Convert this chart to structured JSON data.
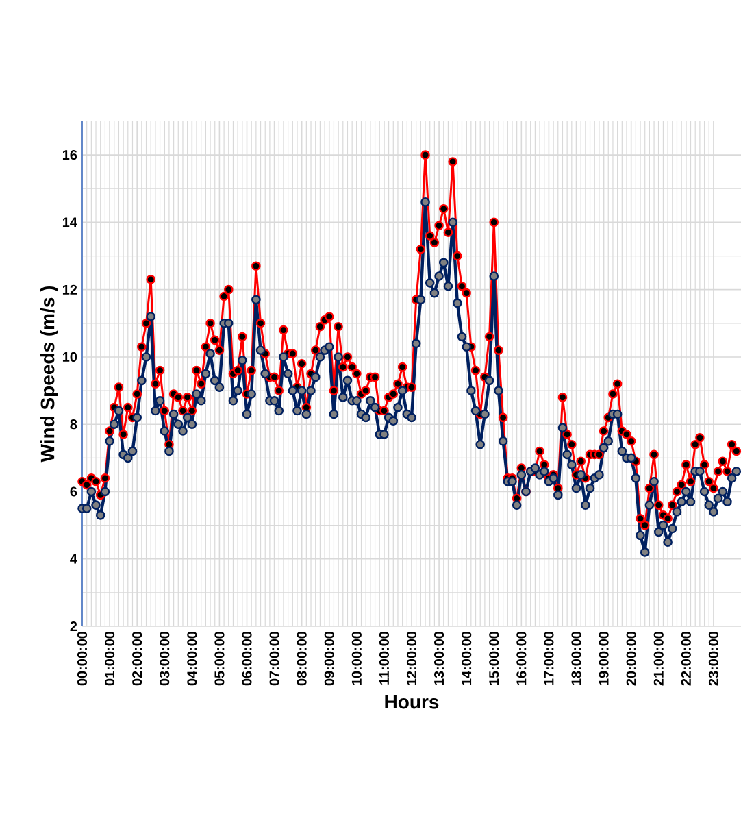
{
  "chart_data": {
    "type": "line",
    "xlabel": "Hours",
    "ylabel": "Wind Speeds (m/s )",
    "x": [
      0,
      0.1667,
      0.3333,
      0.5,
      0.6667,
      0.8333,
      1,
      1.1667,
      1.3333,
      1.5,
      1.6667,
      1.8333,
      2,
      2.1667,
      2.3333,
      2.5,
      2.6667,
      2.8333,
      3,
      3.1667,
      3.3333,
      3.5,
      3.6667,
      3.8333,
      4,
      4.1667,
      4.3333,
      4.5,
      4.6667,
      4.8333,
      5,
      5.1667,
      5.3333,
      5.5,
      5.6667,
      5.8333,
      6,
      6.1667,
      6.3333,
      6.5,
      6.6667,
      6.8333,
      7,
      7.1667,
      7.3333,
      7.5,
      7.6667,
      7.8333,
      8,
      8.1667,
      8.3333,
      8.5,
      8.6667,
      8.8333,
      9,
      9.1667,
      9.3333,
      9.5,
      9.6667,
      9.8333,
      10,
      10.1667,
      10.3333,
      10.5,
      10.6667,
      10.8333,
      11,
      11.1667,
      11.3333,
      11.5,
      11.6667,
      11.8333,
      12,
      12.1667,
      12.3333,
      12.5,
      12.6667,
      12.8333,
      13,
      13.1667,
      13.3333,
      13.5,
      13.6667,
      13.8333,
      14,
      14.1667,
      14.3333,
      14.5,
      14.6667,
      14.8333,
      15,
      15.1667,
      15.3333,
      15.5,
      15.6667,
      15.8333,
      16,
      16.1667,
      16.3333,
      16.5,
      16.6667,
      16.8333,
      17,
      17.1667,
      17.3333,
      17.5,
      17.6667,
      17.8333,
      18,
      18.1667,
      18.3333,
      18.5,
      18.6667,
      18.8333,
      19,
      19.1667,
      19.3333,
      19.5,
      19.6667,
      19.8333,
      20,
      20.1667,
      20.3333,
      20.5,
      20.6667,
      20.8333,
      21,
      21.1667,
      21.3333,
      21.5,
      21.6667,
      21.8333,
      22,
      22.1667,
      22.3333,
      22.5,
      22.6667,
      22.8333,
      23,
      23.1667,
      23.3333,
      23.5,
      23.6667,
      23.8333
    ],
    "series": [
      {
        "color": "#ff0000",
        "values": [
          6.3,
          6.2,
          6.4,
          6.3,
          5.9,
          6.4,
          7.8,
          8.5,
          9.1,
          7.7,
          8.5,
          8.2,
          8.9,
          10.3,
          11.0,
          12.3,
          9.2,
          9.6,
          8.4,
          7.4,
          8.9,
          8.8,
          8.4,
          8.8,
          8.4,
          9.6,
          9.2,
          10.3,
          11.0,
          10.5,
          10.2,
          11.8,
          12.0,
          9.5,
          9.6,
          10.6,
          8.9,
          9.6,
          12.7,
          11.0,
          10.1,
          9.4,
          9.4,
          9.0,
          10.8,
          10.1,
          10.1,
          9.1,
          9.8,
          8.5,
          9.5,
          10.2,
          10.9,
          11.1,
          11.2,
          9.0,
          10.9,
          9.7,
          10.0,
          9.7,
          9.5,
          8.9,
          9.0,
          9.4,
          9.4,
          8.4,
          8.4,
          8.8,
          8.9,
          9.2,
          9.7,
          9.1,
          9.1,
          11.7,
          13.2,
          16.0,
          13.6,
          13.4,
          13.9,
          14.4,
          13.7,
          15.8,
          13.0,
          12.1,
          11.9,
          10.3,
          9.6,
          8.3,
          9.4,
          10.6,
          14.0,
          10.2,
          8.2,
          6.4,
          6.4,
          5.8,
          6.7,
          6.0,
          6.6,
          6.6,
          7.2,
          6.8,
          6.4,
          6.5,
          6.1,
          8.8,
          7.7,
          7.4,
          6.5,
          6.9,
          6.4,
          7.1,
          7.1,
          7.1,
          7.8,
          8.2,
          8.9,
          9.2,
          7.8,
          7.7,
          7.5,
          6.9,
          5.2,
          5.0,
          6.1,
          7.1,
          5.6,
          5.3,
          5.2,
          5.6,
          6.0,
          6.2,
          6.8,
          6.3,
          7.4,
          7.6,
          6.8,
          6.3,
          6.1,
          6.6,
          6.9,
          6.6,
          7.4,
          7.2
        ]
      },
      {
        "color": "#002060",
        "values": [
          5.5,
          5.5,
          6.0,
          5.6,
          5.3,
          6.0,
          7.5,
          8.0,
          8.4,
          7.1,
          7.0,
          7.2,
          8.2,
          9.3,
          10.0,
          11.2,
          8.4,
          8.7,
          7.8,
          7.2,
          8.3,
          8.0,
          7.8,
          8.2,
          8.0,
          8.9,
          8.7,
          9.5,
          10.1,
          9.3,
          9.1,
          11.0,
          11.0,
          8.7,
          9.0,
          9.9,
          8.3,
          8.9,
          11.7,
          10.2,
          9.5,
          8.7,
          8.7,
          8.4,
          10.0,
          9.5,
          9.0,
          8.4,
          9.0,
          8.3,
          9.0,
          9.4,
          10.0,
          10.2,
          10.3,
          8.3,
          10.0,
          8.8,
          9.3,
          8.7,
          8.7,
          8.3,
          8.2,
          8.7,
          8.5,
          7.7,
          7.7,
          8.2,
          8.1,
          8.5,
          9.0,
          8.3,
          8.2,
          10.4,
          11.7,
          14.6,
          12.2,
          11.9,
          12.4,
          12.8,
          12.1,
          14.0,
          11.6,
          10.6,
          10.3,
          9.0,
          8.4,
          7.4,
          8.3,
          9.3,
          12.4,
          9.0,
          7.5,
          6.3,
          6.3,
          5.6,
          6.5,
          6.0,
          6.6,
          6.7,
          6.5,
          6.6,
          6.3,
          6.4,
          5.9,
          7.9,
          7.1,
          6.8,
          6.1,
          6.5,
          5.6,
          6.1,
          6.4,
          6.5,
          7.3,
          7.5,
          8.3,
          8.3,
          7.2,
          7.0,
          7.0,
          6.4,
          4.7,
          4.2,
          5.6,
          6.3,
          4.8,
          5.0,
          4.5,
          4.9,
          5.4,
          5.7,
          6.0,
          5.7,
          6.6,
          6.6,
          6.0,
          5.6,
          5.4,
          5.8,
          6.0,
          5.7,
          6.4,
          6.6
        ]
      }
    ],
    "xlim": [
      0,
      24
    ],
    "ylim": [
      2,
      17
    ],
    "xticks": [
      {
        "value": 0,
        "label": "00:00:00"
      },
      {
        "value": 1,
        "label": "01:00:00"
      },
      {
        "value": 2,
        "label": "02:00:00"
      },
      {
        "value": 3,
        "label": "03:00:00"
      },
      {
        "value": 4,
        "label": "04:00:00"
      },
      {
        "value": 5,
        "label": "05:00:00"
      },
      {
        "value": 6,
        "label": "06:00:00"
      },
      {
        "value": 7,
        "label": "07:00:00"
      },
      {
        "value": 8,
        "label": "08:00:00"
      },
      {
        "value": 9,
        "label": "09:00:00"
      },
      {
        "value": 10,
        "label": "10:00:00"
      },
      {
        "value": 11,
        "label": "11:00:00"
      },
      {
        "value": 12,
        "label": "12:00:00"
      },
      {
        "value": 13,
        "label": "13:00:00"
      },
      {
        "value": 14,
        "label": "14:00:00"
      },
      {
        "value": 15,
        "label": "15:00:00"
      },
      {
        "value": 16,
        "label": "16:00:00"
      },
      {
        "value": 17,
        "label": "17:00:00"
      },
      {
        "value": 18,
        "label": "18:00:00"
      },
      {
        "value": 19,
        "label": "19:00:00"
      },
      {
        "value": 20,
        "label": "20:00:00"
      },
      {
        "value": 21,
        "label": "21:00:00"
      },
      {
        "value": 22,
        "label": "22:00:00"
      },
      {
        "value": 23,
        "label": "23:00:00"
      }
    ],
    "yticks": [
      2,
      4,
      6,
      8,
      10,
      12,
      14,
      16
    ],
    "grid": true,
    "marker": "circle"
  }
}
